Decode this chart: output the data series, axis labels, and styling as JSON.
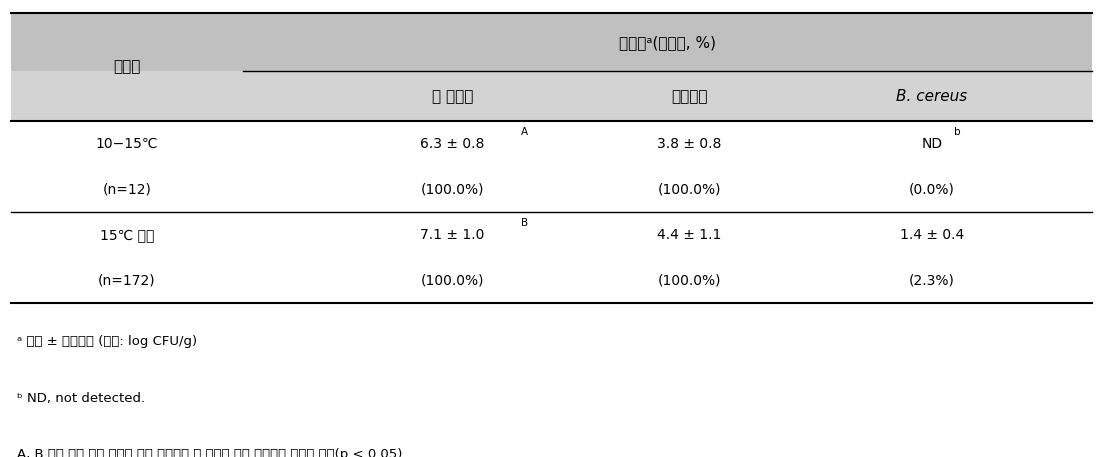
{
  "header_bg_color": "#c0c0c0",
  "subheader_bg_color": "#d3d3d3",
  "table_bg_color": "#ffffff",
  "fig_bg_color": "#ffffff",
  "col_header_1": "중분류",
  "col_header_2": "오염도ᵃ(검출률, %)",
  "col_sub_1": "총 세균수",
  "col_sub_2": "대장균균",
  "col_sub_3": "B. cereus",
  "row1_cat": "10−15℃",
  "row1_n": "(n=12)",
  "row1_v1": "6.3 ± 0.8",
  "row1_v1_sup": "A",
  "row1_v2": "3.8 ± 0.8",
  "row1_v3": "ND",
  "row1_v3_sup": "b",
  "row1_p1": "(100.0%)",
  "row1_p2": "(100.0%)",
  "row1_p3": "(0.0%)",
  "row2_cat": "15℃ 이상",
  "row2_n": "(n=172)",
  "row2_v1": "7.1 ± 1.0",
  "row2_v1_sup": "B",
  "row2_v2": "4.4 ± 1.1",
  "row2_v3": "1.4 ± 0.4",
  "row2_p1": "(100.0%)",
  "row2_p2": "(100.0%)",
  "row2_p3": "(2.3%)",
  "footnote_a": "ᵃ 평균 ± 표준편차 (단위: log CFU/g)",
  "footnote_b": "ᵇ ND, not detected.",
  "footnote_c": "A, B 여름 유통 시료 온도에 따른 절임배추 내 미생물 수에 유의적인 차이가 있음(p < 0.05)"
}
